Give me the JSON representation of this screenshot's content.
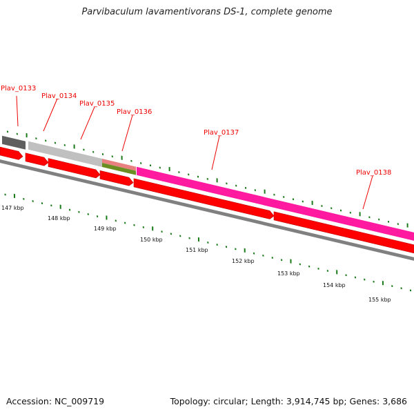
{
  "title": "Parvibaculum lavamentivorans DS-1, complete genome",
  "footer": {
    "accession": "Accession: NC_009719",
    "topology": "Topology: circular; Length: 3,914,745 bp; Genes: 3,686"
  },
  "genes": [
    {
      "label": "Plav_0133",
      "color": "#5f5f5f"
    },
    {
      "label": "Plav_0134",
      "color": "#c0c0c0"
    },
    {
      "label": "Plav_0135",
      "color": "#e88080"
    },
    {
      "label": "Plav_0136",
      "color": "#6b8e23"
    },
    {
      "label": "Plav_0137",
      "color": "#ff1aa0"
    },
    {
      "label": "Plav_0138",
      "color": "#ff0000"
    }
  ],
  "scale_labels": [
    "147 kbp",
    "148 kbp",
    "149 kbp",
    "150 kbp",
    "151 kbp",
    "152 kbp",
    "153 kbp",
    "154 kbp",
    "155 kbp"
  ],
  "colors": {
    "cds": "#ff0000",
    "tick": "#1a7a1a",
    "backbone": "#808080",
    "label": "#ff0000"
  }
}
